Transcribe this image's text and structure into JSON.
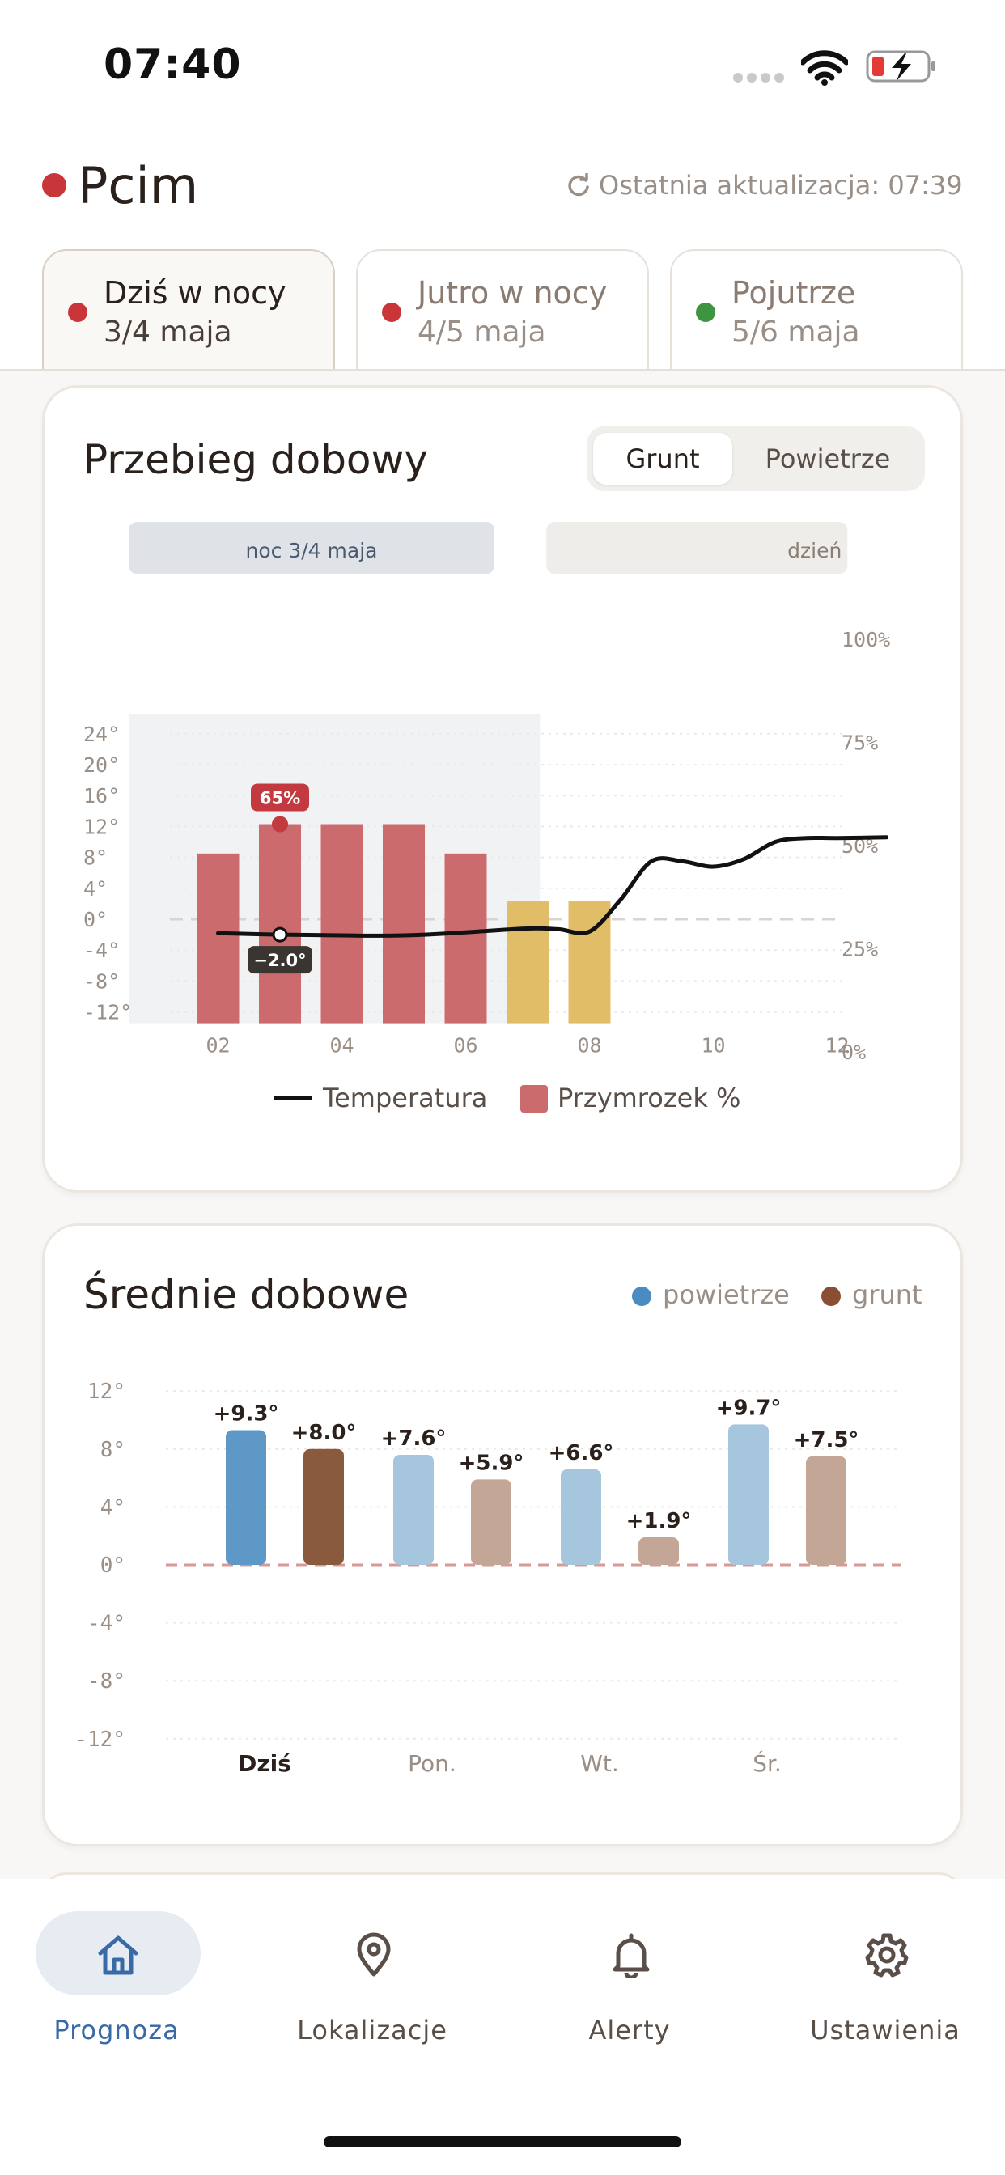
{
  "status_bar": {
    "time": "07:40"
  },
  "header": {
    "location": "Pcim",
    "last_update": "Ostatnia aktualizacja: 07:39"
  },
  "tabs": [
    {
      "title": "Dziś w nocy",
      "date": "3/4 maja",
      "dot_color": "#c8363a",
      "active": true
    },
    {
      "title": "Jutro w nocy",
      "date": "4/5 maja",
      "dot_color": "#c8363a",
      "active": false
    },
    {
      "title": "Pojutrze",
      "date": "5/6 maja",
      "dot_color": "#3e9440",
      "active": false
    }
  ],
  "daily_chart": {
    "title": "Przebieg dobowy",
    "toggle": [
      "Grunt",
      "Powietrze"
    ],
    "toggle_selected": "Grunt",
    "period_labels": [
      "noc 3/4 maja",
      "dzień"
    ],
    "legend": [
      "Temperatura",
      "Przymrozek %"
    ],
    "highlight": {
      "hour": 3,
      "frost_label": "65%",
      "temp_label": "−2.0°"
    }
  },
  "chart_data": [
    {
      "type": "bar",
      "name": "daily-course",
      "x_ticks": [
        "02",
        "04",
        "06",
        "08",
        "10",
        "12"
      ],
      "y_left_ticks": [
        "24°",
        "20°",
        "16°",
        "12°",
        "8°",
        "4°",
        "0°",
        "-4°",
        "-8°",
        "-12°"
      ],
      "y_right_ticks": [
        "100%",
        "75%",
        "50%",
        "25%",
        "0%"
      ],
      "ylim": [
        -12,
        24
      ],
      "xlim": [
        1,
        13
      ],
      "frost_bars": [
        {
          "hour": 2,
          "value": 8.5,
          "color": "#cc6b6e"
        },
        {
          "hour": 3,
          "value": 12.3,
          "color": "#cc6b6e"
        },
        {
          "hour": 4,
          "value": 12.3,
          "color": "#cc6b6e"
        },
        {
          "hour": 5,
          "value": 12.3,
          "color": "#cc6b6e"
        },
        {
          "hour": 6,
          "value": 8.5,
          "color": "#cc6b6e"
        },
        {
          "hour": 7,
          "value": 2.3,
          "color": "#e2bd68"
        },
        {
          "hour": 8,
          "value": 2.3,
          "color": "#e2bd68"
        }
      ],
      "temperature": {
        "x": [
          2,
          3,
          4,
          5,
          6,
          7,
          7.5,
          8,
          8.5,
          9,
          9.5,
          10,
          10.5,
          11,
          11.5,
          12,
          12.8
        ],
        "y": [
          -1.8,
          -2.0,
          -2.1,
          -2.1,
          -1.7,
          -1.2,
          -1.3,
          -1.6,
          2.5,
          7.5,
          7.5,
          6.8,
          7.8,
          10.0,
          10.5,
          10.5,
          10.6
        ]
      },
      "night_band": [
        1,
        7.2
      ]
    },
    {
      "type": "bar",
      "name": "daily-averages",
      "categories": [
        "Dziś",
        "Pon.",
        "Wt.",
        "Śr."
      ],
      "y_ticks": [
        "12°",
        "8°",
        "4°",
        "0°",
        "-4°",
        "-8°",
        "-12°"
      ],
      "ylim": [
        -12,
        12
      ],
      "series": [
        {
          "name": "powietrze",
          "values": [
            9.3,
            7.6,
            6.6,
            9.7
          ],
          "labels": [
            "+9.3°",
            "+7.6°",
            "+6.6°",
            "+9.7°"
          ],
          "color": "#5e98c6",
          "light": "#a6c6de"
        },
        {
          "name": "grunt",
          "values": [
            8.0,
            5.9,
            1.9,
            7.5
          ],
          "labels": [
            "+8.0°",
            "+5.9°",
            "+1.9°",
            "+7.5°"
          ],
          "color": "#8a5a3e",
          "light": "#c4a696"
        }
      ],
      "highlighted_category": "Dziś"
    }
  ],
  "averages": {
    "title": "Średnie dobowe",
    "legend": [
      "powietrze",
      "grunt"
    ],
    "legend_colors": [
      "#4a8bc2",
      "#8a4f32"
    ]
  },
  "nav": [
    {
      "label": "Prognoza",
      "icon": "home-icon",
      "active": true
    },
    {
      "label": "Lokalizacje",
      "icon": "map-pin-icon",
      "active": false
    },
    {
      "label": "Alerty",
      "icon": "bell-icon",
      "active": false
    },
    {
      "label": "Ustawienia",
      "icon": "gear-icon",
      "active": false
    }
  ]
}
